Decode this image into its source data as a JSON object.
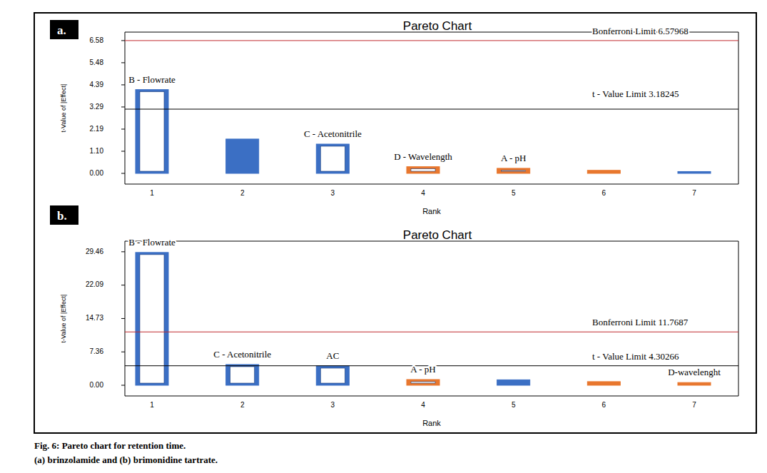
{
  "chart_data": [
    {
      "type": "bar",
      "panel": "a.",
      "title": "Pareto Chart",
      "x_label": "Rank",
      "y_label": "t-Value of |Effect|",
      "categories": [
        "1",
        "2",
        "3",
        "4",
        "5",
        "6",
        "7"
      ],
      "values": [
        4.15,
        1.7,
        1.45,
        0.33,
        0.25,
        0.15,
        0.09
      ],
      "colors": [
        "#3b6fc4",
        "#3b6fc4",
        "#3b6fc4",
        "#e8772e",
        "#e8772e",
        "#e8772e",
        "#3b6fc4"
      ],
      "bar_labels": [
        "B - Flowrate",
        null,
        "C - Acetonitrile",
        "D - Wavelength",
        "A - pH",
        null,
        null
      ],
      "ylim": [
        -0.53,
        7.0
      ],
      "yticks": [
        {
          "value": 0,
          "label": "0.00"
        },
        {
          "value": 1.0966,
          "label": "1.10"
        },
        {
          "value": 2.1932,
          "label": "2.19"
        },
        {
          "value": 3.2898,
          "label": "3.29"
        },
        {
          "value": 4.3865,
          "label": "4.39"
        },
        {
          "value": 5.4831,
          "label": "5.48"
        },
        {
          "value": 6.5797,
          "label": "6.58"
        }
      ],
      "reference_lines": [
        {
          "label": "Bonferroni Limit 6.57968",
          "value": 6.57968,
          "color": "#c0282d"
        },
        {
          "label": "t - Value Limit 3.18245",
          "value": 3.18245,
          "color": "#000000"
        }
      ],
      "grid": false
    },
    {
      "type": "bar",
      "panel": "b.",
      "title": "Pareto Chart",
      "x_label": "Rank",
      "y_label": "t-Value of |Effect|",
      "categories": [
        "1",
        "2",
        "3",
        "4",
        "5",
        "6",
        "7"
      ],
      "values": [
        29.3,
        4.57,
        4.25,
        1.26,
        1.2,
        0.8,
        0.6
      ],
      "colors": [
        "#3b6fc4",
        "#3b6fc4",
        "#3b6fc4",
        "#e8772e",
        "#3b6fc4",
        "#e8772e",
        "#e8772e"
      ],
      "bar_labels": [
        "B - Flowrate",
        "C - Acetonitrile",
        "AC",
        "A - pH",
        null,
        null,
        "D-wavelenght"
      ],
      "ylim": [
        -2.36,
        31.8
      ],
      "yticks": [
        {
          "value": 0,
          "label": "0.00"
        },
        {
          "value": 7.3645,
          "label": "7.36"
        },
        {
          "value": 14.729,
          "label": "14.73"
        },
        {
          "value": 22.0935,
          "label": "22.09"
        },
        {
          "value": 29.458,
          "label": "29.46"
        }
      ],
      "reference_lines": [
        {
          "label": "Bonferroni Limit 11.7687",
          "value": 11.7687,
          "color": "#c0282d"
        },
        {
          "label": "t - Value Limit 4.30266",
          "value": 4.30266,
          "color": "#000000"
        }
      ],
      "grid": false
    }
  ],
  "caption": {
    "title": "Fig. 6: Pareto chart for retention time.",
    "subtitle": "(a) brinzolamide and (b) brimonidine tartrate."
  }
}
